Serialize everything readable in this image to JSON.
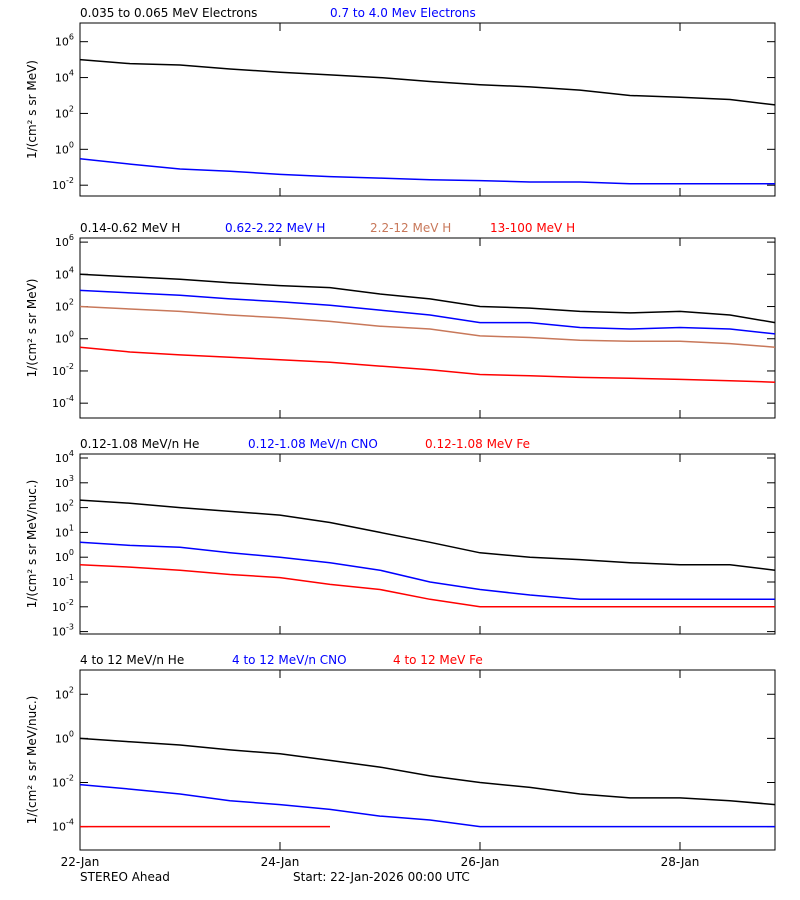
{
  "chart_data": [
    {
      "type": "line",
      "yscale": "log",
      "ylabel": "1/(cm² s sr MeV)",
      "x": [
        0,
        0.5,
        1,
        1.5,
        2,
        2.5,
        3,
        3.5,
        4,
        4.5,
        5,
        5.5,
        6,
        6.5,
        6.95
      ],
      "xlim": [
        0,
        6.95
      ],
      "xticks": [
        0,
        2,
        4,
        6
      ],
      "ylim": [
        0.0025,
        11000000
      ],
      "yticks": [
        {
          "value": 0.01,
          "label": "10^-2"
        },
        {
          "value": 1,
          "label": "10^0"
        },
        {
          "value": 100,
          "label": "10^2"
        },
        {
          "value": 10000,
          "label": "10^4"
        },
        {
          "value": 1000000,
          "label": "10^6"
        }
      ],
      "series": [
        {
          "name": "0.035 to 0.065 MeV Electrons",
          "color": "#000000",
          "values": [
            100000,
            60000,
            50000,
            30000,
            20000,
            14000,
            10000,
            6000,
            4000,
            3000,
            2000,
            1000,
            800,
            600,
            300
          ]
        },
        {
          "name": "0.7 to 4.0 Mev Electrons",
          "color": "#0000ff",
          "values": [
            0.3,
            0.15,
            0.08,
            0.06,
            0.04,
            0.03,
            0.025,
            0.02,
            0.018,
            0.015,
            0.015,
            0.012,
            0.012,
            0.012,
            0.012
          ]
        }
      ]
    },
    {
      "type": "line",
      "yscale": "log",
      "ylabel": "1/(cm² s sr MeV)",
      "x": [
        0,
        0.5,
        1,
        1.5,
        2,
        2.5,
        3,
        3.5,
        4,
        4.5,
        5,
        5.5,
        6,
        6.5,
        6.95
      ],
      "xlim": [
        0,
        6.95
      ],
      "xticks": [
        0,
        2,
        4,
        6
      ],
      "ylim": [
        1.2e-05,
        1800000
      ],
      "yticks": [
        {
          "value": 0.0001,
          "label": "10^-4"
        },
        {
          "value": 0.01,
          "label": "10^-2"
        },
        {
          "value": 1,
          "label": "10^0"
        },
        {
          "value": 100,
          "label": "10^2"
        },
        {
          "value": 10000,
          "label": "10^4"
        },
        {
          "value": 1000000,
          "label": "10^6"
        }
      ],
      "series": [
        {
          "name": "0.14-0.62 MeV H",
          "color": "#000000",
          "values": [
            10000,
            7000,
            5000,
            3000,
            2000,
            1500,
            600,
            300,
            100,
            80,
            50,
            40,
            50,
            30,
            10
          ]
        },
        {
          "name": "0.62-2.22 MeV H",
          "color": "#0000ff",
          "values": [
            1000,
            700,
            500,
            300,
            200,
            120,
            60,
            30,
            10,
            10,
            5,
            4,
            5,
            4,
            2
          ]
        },
        {
          "name": "2.2-12 MeV H",
          "color": "#c8785a",
          "values": [
            100,
            70,
            50,
            30,
            20,
            12,
            6,
            4,
            1.5,
            1.2,
            0.8,
            0.7,
            0.7,
            0.5,
            0.3
          ]
        },
        {
          "name": "13-100 MeV H",
          "color": "#ff0000",
          "values": [
            0.3,
            0.15,
            0.1,
            0.07,
            0.05,
            0.035,
            0.02,
            0.012,
            0.006,
            0.005,
            0.004,
            0.0035,
            0.003,
            0.0025,
            0.002
          ]
        }
      ]
    },
    {
      "type": "line",
      "yscale": "log",
      "ylabel": "1/(cm² s sr MeV/nuc.)",
      "x": [
        0,
        0.5,
        1,
        1.5,
        2,
        2.5,
        3,
        3.5,
        4,
        4.5,
        5,
        5.5,
        6,
        6.5,
        6.95
      ],
      "xlim": [
        0,
        6.95
      ],
      "xticks": [
        0,
        2,
        4,
        6
      ],
      "ylim": [
        0.0008,
        14500
      ],
      "yticks": [
        {
          "value": 0.001,
          "label": "10^-3"
        },
        {
          "value": 0.01,
          "label": "10^-2"
        },
        {
          "value": 0.1,
          "label": "10^-1"
        },
        {
          "value": 1,
          "label": "10^0"
        },
        {
          "value": 10,
          "label": "10^1"
        },
        {
          "value": 100,
          "label": "10^2"
        },
        {
          "value": 1000,
          "label": "10^3"
        },
        {
          "value": 10000,
          "label": "10^4"
        }
      ],
      "series": [
        {
          "name": "0.12-1.08 MeV/n He",
          "color": "#000000",
          "values": [
            200,
            150,
            100,
            70,
            50,
            25,
            10,
            4,
            1.5,
            1,
            0.8,
            0.6,
            0.5,
            0.5,
            0.3
          ]
        },
        {
          "name": "0.12-1.08 MeV/n CNO",
          "color": "#0000ff",
          "values": [
            4,
            3,
            2.5,
            1.5,
            1,
            0.6,
            0.3,
            0.1,
            0.05,
            0.03,
            0.02,
            0.02,
            0.02,
            0.02,
            0.02
          ]
        },
        {
          "name": "0.12-1.08 MeV Fe",
          "color": "#ff0000",
          "values": [
            0.5,
            0.4,
            0.3,
            0.2,
            0.15,
            0.08,
            0.05,
            0.02,
            0.01,
            0.01,
            0.01,
            0.01,
            0.01,
            0.01,
            0.01
          ]
        }
      ]
    },
    {
      "type": "line",
      "yscale": "log",
      "ylabel": "1/(cm² s sr MeV/nuc.)",
      "x": [
        0,
        0.5,
        1,
        1.5,
        2,
        2.5,
        3,
        3.5,
        4,
        4.5,
        5,
        5.5,
        6,
        6.5,
        6.95
      ],
      "xlim": [
        0,
        6.95
      ],
      "xticks": [
        {
          "value": 0,
          "label": "22-Jan"
        },
        {
          "value": 2,
          "label": "24-Jan"
        },
        {
          "value": 4,
          "label": "26-Jan"
        },
        {
          "value": 6,
          "label": "28-Jan"
        }
      ],
      "ylim": [
        8.7e-06,
        1260
      ],
      "yticks": [
        {
          "value": 0.0001,
          "label": "10^-4"
        },
        {
          "value": 0.01,
          "label": "10^-2"
        },
        {
          "value": 1,
          "label": "10^0"
        },
        {
          "value": 100,
          "label": "10^2"
        }
      ],
      "series": [
        {
          "name": "4 to 12 MeV/n He",
          "color": "#000000",
          "values": [
            1,
            0.7,
            0.5,
            0.3,
            0.2,
            0.1,
            0.05,
            0.02,
            0.01,
            0.006,
            0.003,
            0.002,
            0.002,
            0.0015,
            0.001
          ]
        },
        {
          "name": "4 to 12 MeV/n CNO",
          "color": "#0000ff",
          "values": [
            0.008,
            0.005,
            0.003,
            0.0015,
            0.001,
            0.0006,
            0.0003,
            0.0002,
            0.0001,
            0.0001,
            0.0001,
            0.0001,
            0.0001,
            0.0001,
            0.0001
          ]
        },
        {
          "name": "4 to 12 MeV Fe",
          "color": "#ff0000",
          "values": [
            0.0001,
            0.0001,
            0.0001,
            0.0001,
            0.0001,
            0.0001,
            null,
            null,
            null,
            null,
            null,
            null,
            null,
            null,
            null
          ]
        }
      ]
    }
  ],
  "footer": {
    "source": "STEREO Ahead",
    "start": "Start: 22-Jan-2026 00:00 UTC"
  }
}
